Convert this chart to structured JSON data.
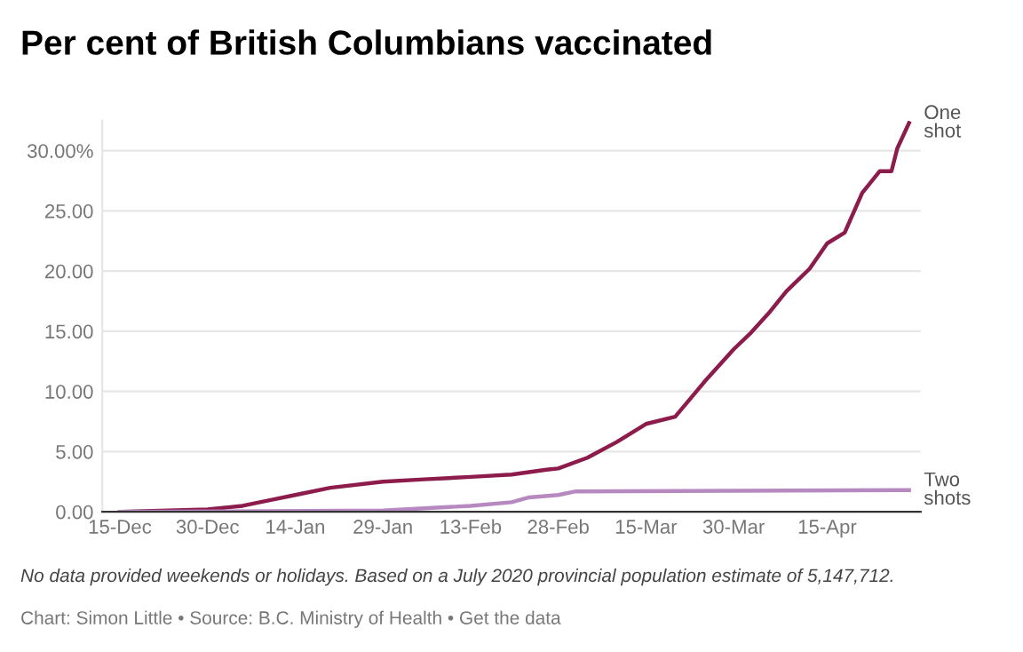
{
  "chart_data": {
    "type": "line",
    "title": "Per cent of British Columbians vaccinated",
    "series": [
      {
        "name": "One shot",
        "color": "#8c1c4c",
        "x": [
          "2020-12-15",
          "2020-12-30",
          "2021-01-05",
          "2021-01-10",
          "2021-01-14",
          "2021-01-20",
          "2021-01-29",
          "2021-02-05",
          "2021-02-13",
          "2021-02-20",
          "2021-02-26",
          "2021-02-28",
          "2021-03-05",
          "2021-03-10",
          "2021-03-15",
          "2021-03-20",
          "2021-03-25",
          "2021-03-30",
          "2021-04-02",
          "2021-04-05",
          "2021-04-08",
          "2021-04-12",
          "2021-04-15",
          "2021-04-18",
          "2021-04-21",
          "2021-04-24",
          "2021-04-26",
          "2021-04-27",
          "2021-04-29"
        ],
        "values": [
          0,
          0.2,
          0.5,
          1.0,
          1.4,
          2.0,
          2.5,
          2.7,
          2.9,
          3.1,
          3.5,
          3.6,
          4.5,
          5.8,
          7.3,
          7.9,
          10.8,
          13.5,
          14.9,
          16.5,
          18.3,
          20.2,
          22.3,
          23.2,
          26.5,
          28.3,
          28.3,
          30.2,
          32.3
        ]
      },
      {
        "name": "Two shots",
        "color": "#b68ac0",
        "x": [
          "2020-12-15",
          "2021-01-29",
          "2021-02-13",
          "2021-02-20",
          "2021-02-23",
          "2021-02-28",
          "2021-03-03",
          "2021-04-29"
        ],
        "values": [
          0,
          0.1,
          0.5,
          0.8,
          1.2,
          1.4,
          1.7,
          1.8
        ]
      }
    ],
    "xlim": [
      "2020-12-12",
      "2021-05-01"
    ],
    "xticks": [
      {
        "value": "2020-12-15",
        "label": "15-Dec"
      },
      {
        "value": "2020-12-30",
        "label": "30-Dec"
      },
      {
        "value": "2021-01-14",
        "label": "14-Jan"
      },
      {
        "value": "2021-01-29",
        "label": "29-Jan"
      },
      {
        "value": "2021-02-13",
        "label": "13-Feb"
      },
      {
        "value": "2021-02-28",
        "label": "28-Feb"
      },
      {
        "value": "2021-03-15",
        "label": "15-Mar"
      },
      {
        "value": "2021-03-30",
        "label": "30-Mar"
      },
      {
        "value": "2021-04-15",
        "label": "15-Apr"
      }
    ],
    "yticks": [
      {
        "value": 0,
        "label": "0.00"
      },
      {
        "value": 5,
        "label": "5.00"
      },
      {
        "value": 10,
        "label": "10.00"
      },
      {
        "value": 15,
        "label": "15.00"
      },
      {
        "value": 20,
        "label": "20.00"
      },
      {
        "value": 25,
        "label": "25.00"
      },
      {
        "value": 30,
        "label": "30.00%"
      }
    ],
    "ylim": [
      0,
      32.5
    ],
    "grid": "y",
    "legend": false,
    "annotations": [
      "No data provided weekends or holidays. Based on a July 2020 provincial population estimate of 5,147,712.",
      "Chart: Simon Little • Source: B.C. Ministry of Health • Get the data"
    ]
  }
}
